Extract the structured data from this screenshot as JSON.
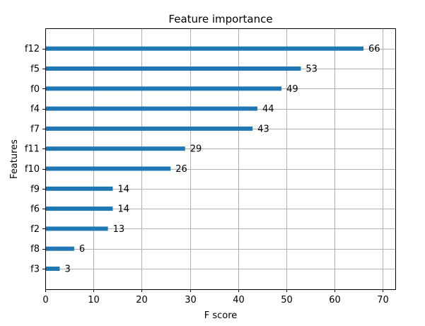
{
  "chart_data": {
    "type": "bar",
    "orientation": "horizontal",
    "title": "Feature importance",
    "xlabel": "F score",
    "ylabel": "Features",
    "categories": [
      "f3",
      "f8",
      "f2",
      "f6",
      "f9",
      "f10",
      "f11",
      "f7",
      "f4",
      "f0",
      "f5",
      "f12"
    ],
    "values": [
      3,
      6,
      13,
      14,
      14,
      26,
      29,
      43,
      44,
      49,
      53,
      66
    ],
    "value_labels": [
      "3",
      "6",
      "13",
      "14",
      "14",
      "26",
      "29",
      "43",
      "44",
      "49",
      "53",
      "66"
    ],
    "xlim": [
      0,
      72.6
    ],
    "xticks": [
      0,
      10,
      20,
      30,
      40,
      50,
      60,
      70
    ],
    "xtick_labels": [
      "0",
      "10",
      "20",
      "30",
      "40",
      "50",
      "60",
      "70"
    ],
    "grid": true,
    "bar_color": "#1f77b4"
  }
}
